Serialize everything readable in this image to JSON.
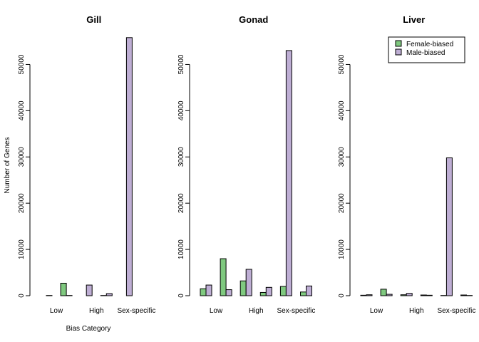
{
  "chart_data": {
    "type": "bar",
    "ylabel": "Number of Genes",
    "xlabel": "Bias Category",
    "colors": {
      "female": "#7fc97f",
      "male": "#beaed4"
    },
    "legend": {
      "placement": "top-right",
      "entries": [
        "Female-biased",
        "Male-biased"
      ]
    },
    "category_labels": [
      "Low",
      "High",
      "Sex-specific"
    ],
    "yticks": [
      0,
      10000,
      20000,
      30000,
      40000,
      50000
    ],
    "ylim": [
      0,
      56000
    ],
    "panels": [
      {
        "title": "Gill",
        "groups": [
          {
            "female": 0,
            "male": 50
          },
          {
            "female": 2700,
            "male": 50
          },
          {
            "female": 0,
            "male": 2300
          },
          {
            "female": 50,
            "male": 450
          },
          {
            "female": 0,
            "male": 55800
          },
          {
            "female": 0,
            "male": 0
          }
        ]
      },
      {
        "title": "Gonad",
        "groups": [
          {
            "female": 1500,
            "male": 2300
          },
          {
            "female": 8000,
            "male": 1300
          },
          {
            "female": 3200,
            "male": 5700
          },
          {
            "female": 700,
            "male": 1800
          },
          {
            "female": 2000,
            "male": 53000
          },
          {
            "female": 800,
            "male": 2100
          }
        ]
      },
      {
        "title": "Liver",
        "groups": [
          {
            "female": 100,
            "male": 200
          },
          {
            "female": 1400,
            "male": 300
          },
          {
            "female": 200,
            "male": 500
          },
          {
            "female": 150,
            "male": 100
          },
          {
            "female": 50,
            "male": 29800
          },
          {
            "female": 150,
            "male": 50
          }
        ]
      }
    ]
  }
}
